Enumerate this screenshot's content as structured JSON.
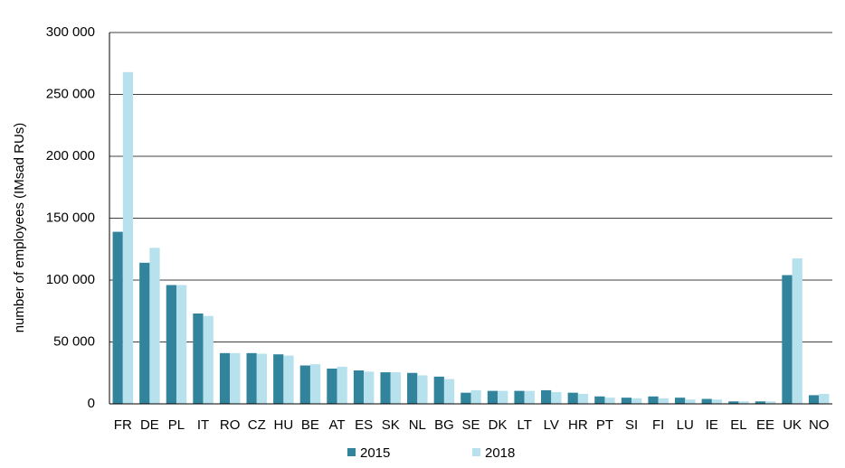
{
  "chart_data": {
    "type": "bar",
    "y_label": "number of employees (IMsad RUs)",
    "categories": [
      "FR",
      "DE",
      "PL",
      "IT",
      "RO",
      "CZ",
      "HU",
      "BE",
      "AT",
      "ES",
      "SK",
      "NL",
      "BG",
      "SE",
      "DK",
      "LT",
      "LV",
      "HR",
      "PT",
      "SI",
      "FI",
      "LU",
      "IE",
      "EL",
      "EE",
      "UK",
      "NO"
    ],
    "series": [
      {
        "name": "2015",
        "color": "#31849b",
        "values": [
          139000,
          114000,
          96000,
          73000,
          41000,
          41000,
          40000,
          31000,
          28500,
          27000,
          25500,
          25000,
          22000,
          9000,
          10500,
          10500,
          11000,
          9000,
          6000,
          5000,
          6000,
          5000,
          4000,
          2000,
          2000,
          104000,
          7000
        ]
      },
      {
        "name": "2018",
        "color": "#b7e1ec",
        "values": [
          268000,
          126000,
          96000,
          71000,
          41000,
          40500,
          39000,
          32000,
          30000,
          26000,
          25500,
          23000,
          20000,
          11000,
          10500,
          10500,
          9500,
          8000,
          5000,
          4500,
          4500,
          3500,
          3500,
          2000,
          2000,
          117500,
          8000
        ]
      }
    ],
    "ylim": [
      0,
      300000
    ],
    "yticks": [
      0,
      {
        "value": 50000,
        "label": "50 000"
      },
      {
        "value": 100000,
        "label": "100 000"
      },
      {
        "value": 150000,
        "label": "150 000"
      },
      {
        "value": 200000,
        "label": "200 000"
      },
      {
        "value": 250000,
        "label": "250 000"
      },
      {
        "value": 300000,
        "label": "300 000"
      }
    ],
    "grid": true
  }
}
